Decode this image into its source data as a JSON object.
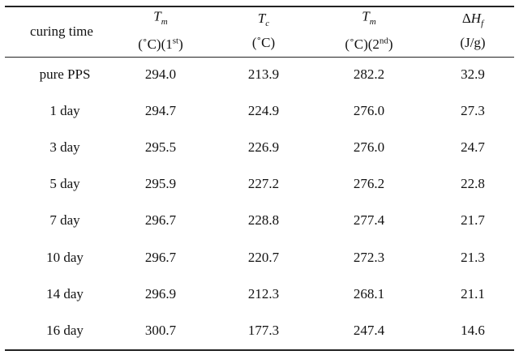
{
  "table": {
    "header": [
      {
        "text": "curing time"
      },
      {
        "symbol": "T",
        "sub": "m",
        "unit": "(˚C)(1",
        "sup": "st",
        "tail": ")"
      },
      {
        "symbol": "T",
        "sub": "c",
        "unit": "(˚C)"
      },
      {
        "symbol": "T",
        "sub": "m",
        "unit": "(˚C)(2",
        "sup": "nd",
        "tail": ")"
      },
      {
        "prefix": "Δ",
        "symbol": "H",
        "sub": "f",
        "unit": "(J/g)"
      }
    ],
    "rows": [
      [
        "pure PPS",
        "294.0",
        "213.9",
        "282.2",
        "32.9"
      ],
      [
        "1 day",
        "294.7",
        "224.9",
        "276.0",
        "27.3"
      ],
      [
        "3 day",
        "295.5",
        "226.9",
        "276.0",
        "24.7"
      ],
      [
        "5 day",
        "295.9",
        "227.2",
        "276.2",
        "22.8"
      ],
      [
        "7 day",
        "296.7",
        "228.8",
        "277.4",
        "21.7"
      ],
      [
        "10 day",
        "296.7",
        "220.7",
        "272.3",
        "21.3"
      ],
      [
        "14 day",
        "296.9",
        "212.3",
        "268.1",
        "21.1"
      ],
      [
        "16 day",
        "300.7",
        "177.3",
        "247.4",
        "14.6"
      ]
    ]
  }
}
